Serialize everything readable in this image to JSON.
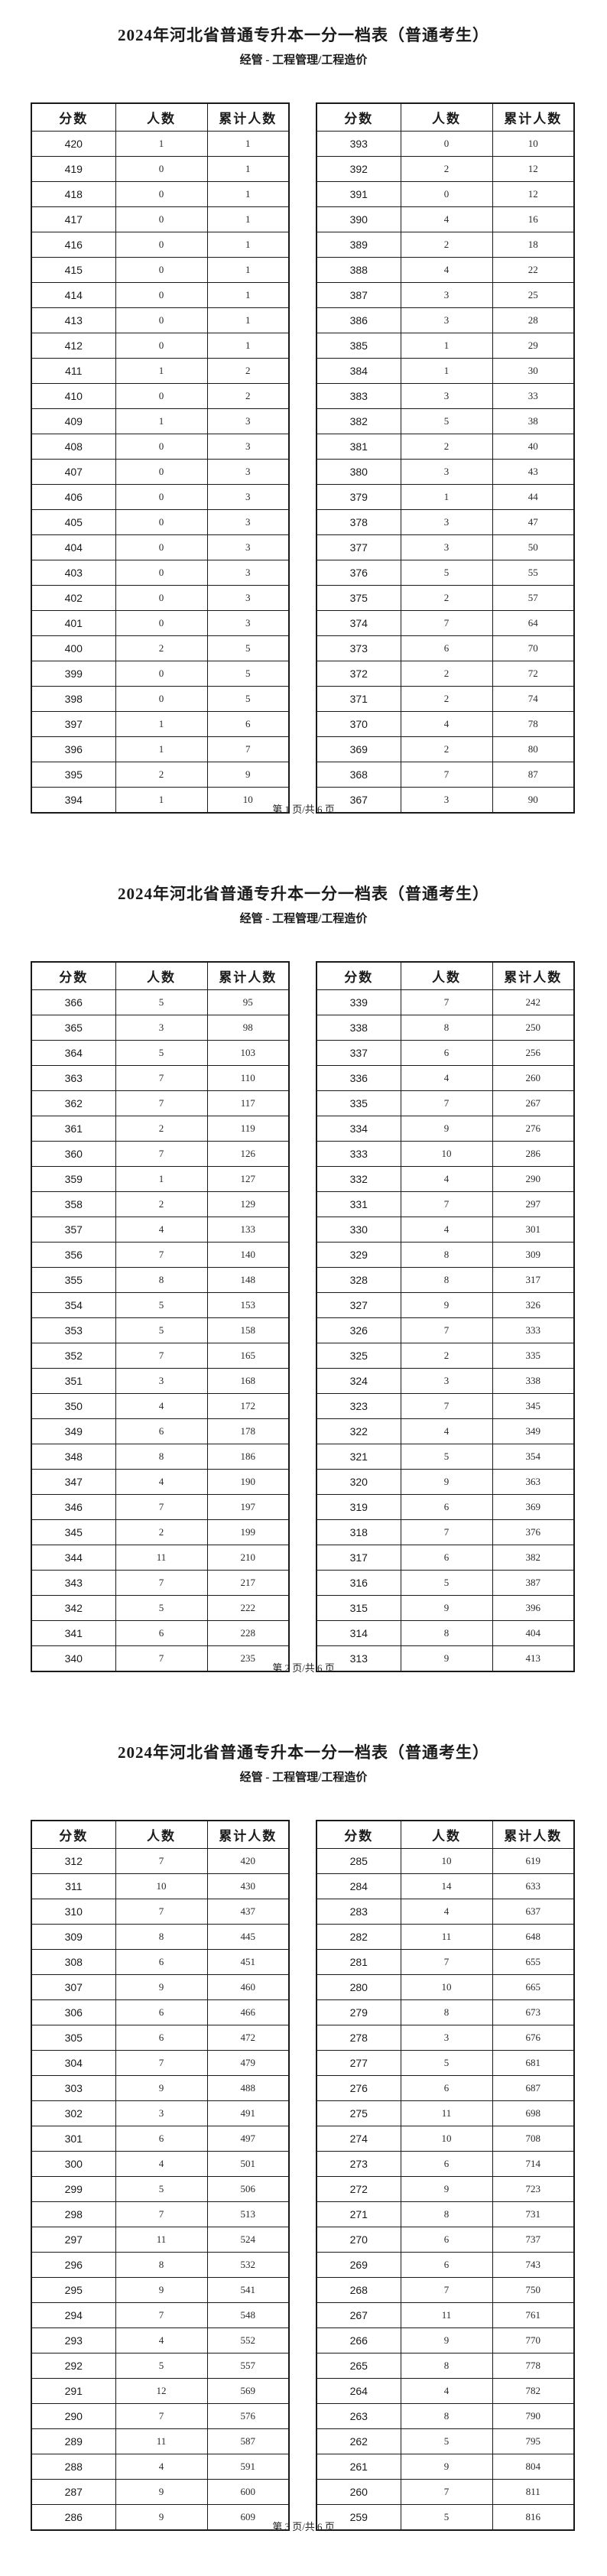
{
  "document": {
    "columns": [
      "分数",
      "人数",
      "累计人数"
    ],
    "pages": [
      {
        "title": "2024年河北省普通专升本一分一档表（普通考生）",
        "subtitle": "经管 - 工程管理/工程造价",
        "footer": "第 1 页/共 6 页",
        "left_table": {
          "rows": [
            [
              420,
              1,
              1
            ],
            [
              419,
              0,
              1
            ],
            [
              418,
              0,
              1
            ],
            [
              417,
              0,
              1
            ],
            [
              416,
              0,
              1
            ],
            [
              415,
              0,
              1
            ],
            [
              414,
              0,
              1
            ],
            [
              413,
              0,
              1
            ],
            [
              412,
              0,
              1
            ],
            [
              411,
              1,
              2
            ],
            [
              410,
              0,
              2
            ],
            [
              409,
              1,
              3
            ],
            [
              408,
              0,
              3
            ],
            [
              407,
              0,
              3
            ],
            [
              406,
              0,
              3
            ],
            [
              405,
              0,
              3
            ],
            [
              404,
              0,
              3
            ],
            [
              403,
              0,
              3
            ],
            [
              402,
              0,
              3
            ],
            [
              401,
              0,
              3
            ],
            [
              400,
              2,
              5
            ],
            [
              399,
              0,
              5
            ],
            [
              398,
              0,
              5
            ],
            [
              397,
              1,
              6
            ],
            [
              396,
              1,
              7
            ],
            [
              395,
              2,
              9
            ],
            [
              394,
              1,
              10
            ]
          ]
        },
        "right_table": {
          "rows": [
            [
              393,
              0,
              10
            ],
            [
              392,
              2,
              12
            ],
            [
              391,
              0,
              12
            ],
            [
              390,
              4,
              16
            ],
            [
              389,
              2,
              18
            ],
            [
              388,
              4,
              22
            ],
            [
              387,
              3,
              25
            ],
            [
              386,
              3,
              28
            ],
            [
              385,
              1,
              29
            ],
            [
              384,
              1,
              30
            ],
            [
              383,
              3,
              33
            ],
            [
              382,
              5,
              38
            ],
            [
              381,
              2,
              40
            ],
            [
              380,
              3,
              43
            ],
            [
              379,
              1,
              44
            ],
            [
              378,
              3,
              47
            ],
            [
              377,
              3,
              50
            ],
            [
              376,
              5,
              55
            ],
            [
              375,
              2,
              57
            ],
            [
              374,
              7,
              64
            ],
            [
              373,
              6,
              70
            ],
            [
              372,
              2,
              72
            ],
            [
              371,
              2,
              74
            ],
            [
              370,
              4,
              78
            ],
            [
              369,
              2,
              80
            ],
            [
              368,
              7,
              87
            ],
            [
              367,
              3,
              90
            ]
          ]
        }
      },
      {
        "title": "2024年河北省普通专升本一分一档表（普通考生）",
        "subtitle": "经管 - 工程管理/工程造价",
        "footer": "第 2 页/共 6 页",
        "left_table": {
          "rows": [
            [
              366,
              5,
              95
            ],
            [
              365,
              3,
              98
            ],
            [
              364,
              5,
              103
            ],
            [
              363,
              7,
              110
            ],
            [
              362,
              7,
              117
            ],
            [
              361,
              2,
              119
            ],
            [
              360,
              7,
              126
            ],
            [
              359,
              1,
              127
            ],
            [
              358,
              2,
              129
            ],
            [
              357,
              4,
              133
            ],
            [
              356,
              7,
              140
            ],
            [
              355,
              8,
              148
            ],
            [
              354,
              5,
              153
            ],
            [
              353,
              5,
              158
            ],
            [
              352,
              7,
              165
            ],
            [
              351,
              3,
              168
            ],
            [
              350,
              4,
              172
            ],
            [
              349,
              6,
              178
            ],
            [
              348,
              8,
              186
            ],
            [
              347,
              4,
              190
            ],
            [
              346,
              7,
              197
            ],
            [
              345,
              2,
              199
            ],
            [
              344,
              11,
              210
            ],
            [
              343,
              7,
              217
            ],
            [
              342,
              5,
              222
            ],
            [
              341,
              6,
              228
            ],
            [
              340,
              7,
              235
            ]
          ]
        },
        "right_table": {
          "rows": [
            [
              339,
              7,
              242
            ],
            [
              338,
              8,
              250
            ],
            [
              337,
              6,
              256
            ],
            [
              336,
              4,
              260
            ],
            [
              335,
              7,
              267
            ],
            [
              334,
              9,
              276
            ],
            [
              333,
              10,
              286
            ],
            [
              332,
              4,
              290
            ],
            [
              331,
              7,
              297
            ],
            [
              330,
              4,
              301
            ],
            [
              329,
              8,
              309
            ],
            [
              328,
              8,
              317
            ],
            [
              327,
              9,
              326
            ],
            [
              326,
              7,
              333
            ],
            [
              325,
              2,
              335
            ],
            [
              324,
              3,
              338
            ],
            [
              323,
              7,
              345
            ],
            [
              322,
              4,
              349
            ],
            [
              321,
              5,
              354
            ],
            [
              320,
              9,
              363
            ],
            [
              319,
              6,
              369
            ],
            [
              318,
              7,
              376
            ],
            [
              317,
              6,
              382
            ],
            [
              316,
              5,
              387
            ],
            [
              315,
              9,
              396
            ],
            [
              314,
              8,
              404
            ],
            [
              313,
              9,
              413
            ]
          ]
        }
      },
      {
        "title": "2024年河北省普通专升本一分一档表（普通考生）",
        "subtitle": "经管 - 工程管理/工程造价",
        "footer": "第 3 页/共 6 页",
        "left_table": {
          "rows": [
            [
              312,
              7,
              420
            ],
            [
              311,
              10,
              430
            ],
            [
              310,
              7,
              437
            ],
            [
              309,
              8,
              445
            ],
            [
              308,
              6,
              451
            ],
            [
              307,
              9,
              460
            ],
            [
              306,
              6,
              466
            ],
            [
              305,
              6,
              472
            ],
            [
              304,
              7,
              479
            ],
            [
              303,
              9,
              488
            ],
            [
              302,
              3,
              491
            ],
            [
              301,
              6,
              497
            ],
            [
              300,
              4,
              501
            ],
            [
              299,
              5,
              506
            ],
            [
              298,
              7,
              513
            ],
            [
              297,
              11,
              524
            ],
            [
              296,
              8,
              532
            ],
            [
              295,
              9,
              541
            ],
            [
              294,
              7,
              548
            ],
            [
              293,
              4,
              552
            ],
            [
              292,
              5,
              557
            ],
            [
              291,
              12,
              569
            ],
            [
              290,
              7,
              576
            ],
            [
              289,
              11,
              587
            ],
            [
              288,
              4,
              591
            ],
            [
              287,
              9,
              600
            ],
            [
              286,
              9,
              609
            ]
          ]
        },
        "right_table": {
          "rows": [
            [
              285,
              10,
              619
            ],
            [
              284,
              14,
              633
            ],
            [
              283,
              4,
              637
            ],
            [
              282,
              11,
              648
            ],
            [
              281,
              7,
              655
            ],
            [
              280,
              10,
              665
            ],
            [
              279,
              8,
              673
            ],
            [
              278,
              3,
              676
            ],
            [
              277,
              5,
              681
            ],
            [
              276,
              6,
              687
            ],
            [
              275,
              11,
              698
            ],
            [
              274,
              10,
              708
            ],
            [
              273,
              6,
              714
            ],
            [
              272,
              9,
              723
            ],
            [
              271,
              8,
              731
            ],
            [
              270,
              6,
              737
            ],
            [
              269,
              6,
              743
            ],
            [
              268,
              7,
              750
            ],
            [
              267,
              11,
              761
            ],
            [
              266,
              9,
              770
            ],
            [
              265,
              8,
              778
            ],
            [
              264,
              4,
              782
            ],
            [
              263,
              8,
              790
            ],
            [
              262,
              5,
              795
            ],
            [
              261,
              9,
              804
            ],
            [
              260,
              7,
              811
            ],
            [
              259,
              5,
              816
            ]
          ]
        }
      }
    ]
  }
}
